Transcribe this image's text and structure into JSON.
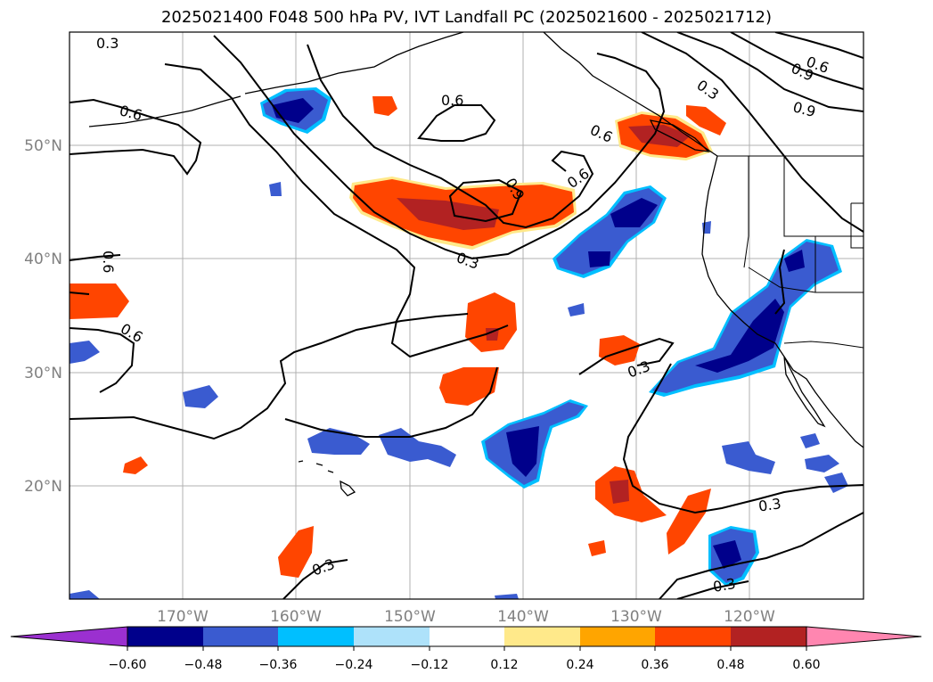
{
  "title": "2025021400 F048 500 hPa PV, IVT Landfall PC (2025021600 - 2025021712)",
  "map": {
    "lat_ticks": [
      "50°N",
      "40°N",
      "30°N",
      "20°N"
    ],
    "lon_ticks": [
      "170°W",
      "160°W",
      "150°W",
      "140°W",
      "130°W",
      "120°W"
    ],
    "gridlines": true,
    "contour_color": "#000000",
    "contour_labels": [
      "0.3",
      "0.6",
      "0.6",
      "0.6",
      "0.6",
      "0.9",
      "0.6",
      "0.3",
      "0.9",
      "0.9",
      "0.6",
      "0.3",
      "0.6",
      "0.3",
      "0.3",
      "0.3",
      "0.3"
    ]
  },
  "colorbar": {
    "ticks": [
      "−0.60",
      "−0.48",
      "−0.36",
      "−0.24",
      "−0.12",
      "0.12",
      "0.24",
      "0.36",
      "0.48",
      "0.60"
    ],
    "colors": [
      "#9b30d0",
      "#00008b",
      "#3a5bd0",
      "#00bfff",
      "#aee2fa",
      "#ffffff",
      "#ffe98a",
      "#ffa500",
      "#ff4500",
      "#b22222",
      "#ff86b0"
    ]
  }
}
